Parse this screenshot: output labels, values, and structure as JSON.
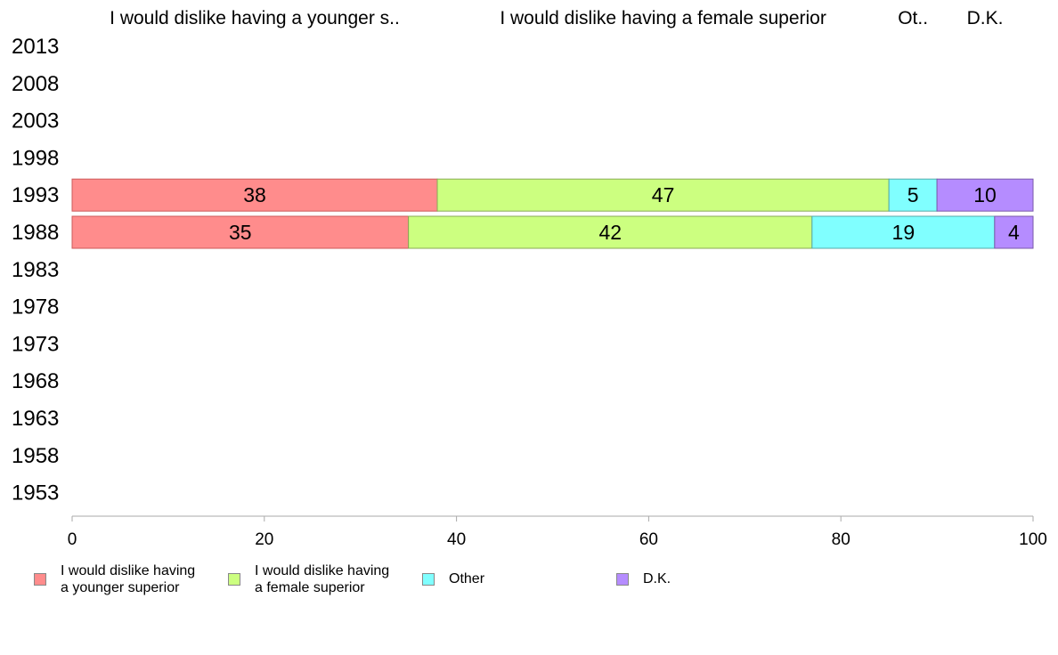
{
  "chart_data": {
    "type": "bar",
    "orientation": "horizontal",
    "stacked": true,
    "categories": [
      "2013",
      "2008",
      "2003",
      "1998",
      "1993",
      "1988",
      "1983",
      "1978",
      "1973",
      "1968",
      "1963",
      "1958",
      "1953"
    ],
    "column_headers": [
      "I would dislike having a younger s..",
      "I would dislike having a female superior",
      "Ot..",
      "D.K."
    ],
    "series": [
      {
        "name": "I would dislike having\na younger superior",
        "color": "#ff8c8c",
        "stroke": "#cc5a5a",
        "values": [
          null,
          null,
          null,
          null,
          38,
          35,
          null,
          null,
          null,
          null,
          null,
          null,
          null
        ]
      },
      {
        "name": "I would dislike having\na female superior",
        "color": "#ccff80",
        "stroke": "#88aa55",
        "values": [
          null,
          null,
          null,
          null,
          47,
          42,
          null,
          null,
          null,
          null,
          null,
          null,
          null
        ]
      },
      {
        "name": "Other",
        "color": "#80ffff",
        "stroke": "#55aaaa",
        "values": [
          null,
          null,
          null,
          null,
          5,
          19,
          null,
          null,
          null,
          null,
          null,
          null,
          null
        ]
      },
      {
        "name": "D.K.",
        "color": "#b58cff",
        "stroke": "#7a5aaa",
        "values": [
          null,
          null,
          null,
          null,
          10,
          4,
          null,
          null,
          null,
          null,
          null,
          null,
          null
        ]
      }
    ],
    "xlim": [
      0,
      100
    ],
    "xticks": [
      "0",
      "20",
      "40",
      "60",
      "80",
      "100"
    ],
    "legend_position": "bottom"
  }
}
